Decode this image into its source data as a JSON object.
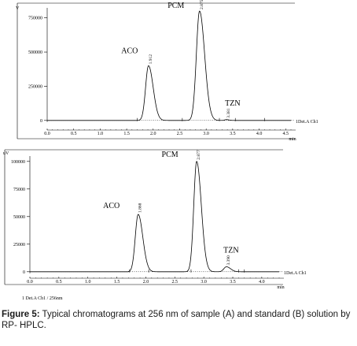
{
  "chart_data": [
    {
      "type": "line",
      "panel": "A",
      "y_unit_label": "V",
      "y_ticks": [
        "750000",
        "500000",
        "250000",
        "0"
      ],
      "y_tick_values": [
        750000,
        500000,
        250000,
        0
      ],
      "x_ticks": [
        "0.0",
        "0.5",
        "1.0",
        "1.5",
        "2.0",
        "2.5",
        "3.0",
        "3.5",
        "4.0",
        "4.5"
      ],
      "x_tick_values": [
        0,
        0.5,
        1.0,
        1.5,
        2.0,
        2.5,
        3.0,
        3.5,
        4.0,
        4.5
      ],
      "xlabel": "min",
      "xlim": [
        0,
        4.6
      ],
      "ylim": [
        -30000,
        800000
      ],
      "channel_label": "1Det.A Ch1",
      "peaks": [
        {
          "name": "ACO",
          "rt_label": "1.912",
          "rt": 1.912,
          "height": 400000,
          "width": 0.055
        },
        {
          "name": "PCM",
          "rt_label": "2.875",
          "rt": 2.875,
          "height": 800000,
          "width": 0.06
        },
        {
          "name": "TZN",
          "rt_label": "3.381",
          "rt": 3.381,
          "height": 6000,
          "width": 0.03
        }
      ],
      "markers": [
        1.7,
        2.55,
        3.25,
        3.55,
        4.1
      ]
    },
    {
      "type": "line",
      "panel": "B",
      "y_unit_label": "uV",
      "y_ticks": [
        "100000",
        "75000",
        "50000",
        "25000",
        "0"
      ],
      "y_tick_values": [
        100000,
        75000,
        50000,
        25000,
        0
      ],
      "x_ticks": [
        "0.0",
        "0.5",
        "1.0",
        "1.5",
        "2.0",
        "2.5",
        "3.0",
        "3.5",
        "4.0"
      ],
      "x_tick_values": [
        0,
        0.5,
        1.0,
        1.5,
        2.0,
        2.5,
        3.0,
        3.5,
        4.0
      ],
      "xlabel": "min",
      "xlim": [
        0,
        4.3
      ],
      "ylim": [
        -3000,
        102000
      ],
      "channel_label": "1Det.A Ch1",
      "peaks": [
        {
          "name": "ACO",
          "rt_label": "1.868",
          "rt": 1.868,
          "height": 52000,
          "width": 0.05
        },
        {
          "name": "PCM",
          "rt_label": "2.877",
          "rt": 2.877,
          "height": 100000,
          "width": 0.05
        },
        {
          "name": "TZN",
          "rt_label": "3.390",
          "rt": 3.39,
          "height": 4500,
          "width": 0.045
        }
      ],
      "markers": [
        1.72,
        2.05,
        2.78,
        3.6,
        3.7
      ]
    }
  ],
  "footnote": "1  Det.A Ch1 / 256nm",
  "caption": {
    "label": "Figure 5:",
    "text": " Typical chromatograms at 256 nm of sample (A) and standard (B) solution by RP- HPLC."
  }
}
